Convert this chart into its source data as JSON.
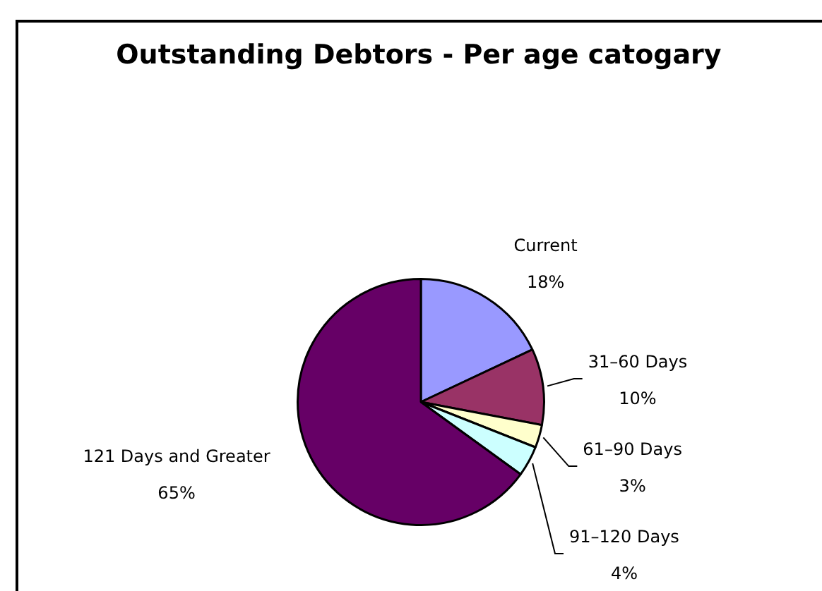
{
  "chart_data": {
    "type": "pie",
    "title": "Outstanding Debtors - Per age catogary",
    "categories": [
      "Current",
      "31–60 Days",
      "61–90 Days",
      "91–120 Days",
      "121 Days and Greater"
    ],
    "values": [
      18,
      10,
      3,
      4,
      65
    ],
    "value_labels": [
      "18%",
      "10%",
      "3%",
      "4%",
      "65%"
    ],
    "colors": [
      "#9999ff",
      "#993366",
      "#ffffcc",
      "#ccffff",
      "#660066"
    ],
    "legend": false
  }
}
